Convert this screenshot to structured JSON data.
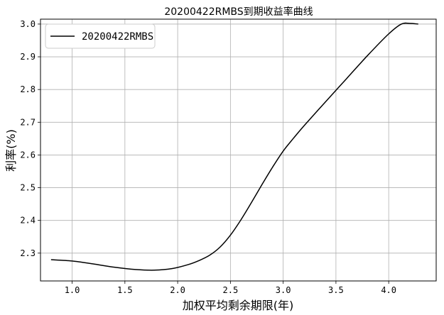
{
  "chart_data": {
    "type": "line",
    "title": "20200422RMBS到期收益率曲线",
    "xlabel": "加权平均剩余期限(年)",
    "ylabel": "利率(%)",
    "xlim": [
      0.7,
      4.45
    ],
    "ylim": [
      2.215,
      3.015
    ],
    "xticks": [
      "1.0",
      "1.5",
      "2.0",
      "2.5",
      "3.0",
      "3.5",
      "4.0"
    ],
    "yticks": [
      "2.3",
      "2.4",
      "2.5",
      "2.6",
      "2.7",
      "2.8",
      "2.9",
      "3.0"
    ],
    "grid": true,
    "legend_position": "top-left",
    "series": [
      {
        "name": "20200422RMBS",
        "color": "#000000",
        "x": [
          0.8,
          1.0,
          1.2,
          1.4,
          1.6,
          1.78,
          1.95,
          2.1,
          2.2,
          2.3,
          2.4,
          2.5,
          2.6,
          2.7,
          2.8,
          2.9,
          3.0,
          3.1,
          3.2,
          3.4,
          3.6,
          3.8,
          4.0,
          4.12,
          4.2,
          4.28
        ],
        "y": [
          2.28,
          2.276,
          2.267,
          2.257,
          2.25,
          2.248,
          2.253,
          2.265,
          2.277,
          2.293,
          2.318,
          2.355,
          2.402,
          2.455,
          2.51,
          2.563,
          2.612,
          2.652,
          2.69,
          2.762,
          2.833,
          2.904,
          2.97,
          3.0,
          3.002,
          3.0
        ]
      }
    ]
  }
}
